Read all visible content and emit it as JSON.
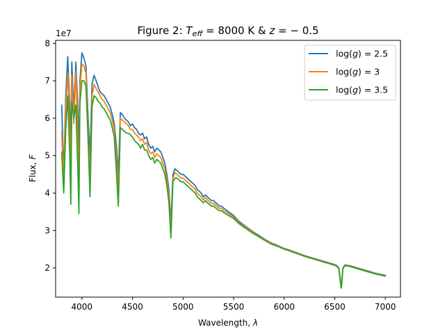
{
  "chart_data": {
    "type": "line",
    "title": "Figure 2: T_eff = 8000 K & z = −0.5",
    "title_parts": {
      "prefix": "Figure 2: ",
      "T": "T",
      "eff": "eff",
      "mid": " = 8000 K & ",
      "z": "z",
      "suffix": " = − 0.5"
    },
    "xlabel": "Wavelength, λ",
    "xlabel_parts": {
      "text": "Wavelength, ",
      "sym": "λ"
    },
    "ylabel": "Flux, F",
    "ylabel_parts": {
      "text": "Flux, ",
      "sym": "F"
    },
    "xlim": [
      3740,
      7150
    ],
    "ylim": [
      12200000,
      80800000
    ],
    "y_scale_label": "1e7",
    "x_ticks": [
      4000,
      4500,
      5000,
      5500,
      6000,
      6500,
      7000
    ],
    "x_tick_labels": [
      "4000",
      "4500",
      "5000",
      "5500",
      "6000",
      "6500",
      "7000"
    ],
    "y_ticks": [
      20000000,
      30000000,
      40000000,
      50000000,
      60000000,
      70000000,
      80000000
    ],
    "y_tick_labels": [
      "2",
      "3",
      "4",
      "5",
      "6",
      "7",
      "8"
    ],
    "grid": false,
    "legend_position": "top-right",
    "x": [
      3800,
      3820,
      3840,
      3860,
      3880,
      3890,
      3900,
      3920,
      3940,
      3960,
      3970,
      3980,
      4000,
      4020,
      4040,
      4060,
      4080,
      4100,
      4120,
      4140,
      4160,
      4180,
      4200,
      4220,
      4240,
      4260,
      4280,
      4300,
      4320,
      4340,
      4360,
      4380,
      4400,
      4420,
      4440,
      4460,
      4480,
      4500,
      4520,
      4540,
      4560,
      4580,
      4600,
      4620,
      4640,
      4660,
      4680,
      4700,
      4720,
      4740,
      4760,
      4780,
      4800,
      4820,
      4840,
      4860,
      4880,
      4900,
      4920,
      4940,
      4960,
      4980,
      5000,
      5020,
      5040,
      5060,
      5080,
      5100,
      5120,
      5140,
      5160,
      5180,
      5200,
      5220,
      5240,
      5260,
      5280,
      5300,
      5320,
      5340,
      5360,
      5380,
      5400,
      5450,
      5500,
      5550,
      5600,
      5650,
      5700,
      5750,
      5800,
      5850,
      5880,
      5900,
      5950,
      6000,
      6050,
      6100,
      6150,
      6200,
      6250,
      6300,
      6350,
      6400,
      6450,
      6500,
      6520,
      6540,
      6550,
      6560,
      6565,
      6570,
      6580,
      6600,
      6650,
      6700,
      6750,
      6800,
      6850,
      6900,
      6950,
      7000
    ],
    "series": [
      {
        "name": "log(g) = 2.5",
        "name_parts": {
          "func": "log(",
          "g": "g",
          "rest": ") = 2.5"
        },
        "color": "#1f77b4",
        "values": [
          63.5,
          45.0,
          66.0,
          76.5,
          62.0,
          55.0,
          75.0,
          62.0,
          75.0,
          62.0,
          48.0,
          70.0,
          77.5,
          76.0,
          74.0,
          61.0,
          50.0,
          69.0,
          71.5,
          70.0,
          68.5,
          67.0,
          66.5,
          66.0,
          65.0,
          64.0,
          63.0,
          61.0,
          58.5,
          53.0,
          45.0,
          61.5,
          61.0,
          60.0,
          59.5,
          59.0,
          58.0,
          58.5,
          57.5,
          57.0,
          56.0,
          55.5,
          56.0,
          54.5,
          55.0,
          53.0,
          52.0,
          52.5,
          51.0,
          52.0,
          51.5,
          51.0,
          49.5,
          48.0,
          45.0,
          41.0,
          32.0,
          45.0,
          46.5,
          46.0,
          45.5,
          45.0,
          45.0,
          44.5,
          44.0,
          43.5,
          43.0,
          42.5,
          42.0,
          41.0,
          40.5,
          40.0,
          39.0,
          39.5,
          39.0,
          38.5,
          38.0,
          38.0,
          37.5,
          37.0,
          36.5,
          36.5,
          36.0,
          35.0,
          34.0,
          32.5,
          31.5,
          30.5,
          29.5,
          28.7,
          27.8,
          27.0,
          26.6,
          26.4,
          25.8,
          25.2,
          24.8,
          24.3,
          23.8,
          23.3,
          22.9,
          22.5,
          22.1,
          21.7,
          21.3,
          20.9,
          20.6,
          20.0,
          18.0,
          16.0,
          15.0,
          16.5,
          20.0,
          20.8,
          20.6,
          20.2,
          19.8,
          19.4,
          19.0,
          18.6,
          18.3,
          18.0
        ]
      },
      {
        "name": "log(g) = 3",
        "name_parts": {
          "func": "log(",
          "g": "g",
          "rest": ") = 3"
        },
        "color": "#ff7f0e",
        "values": [
          56.5,
          43.5,
          63.0,
          72.0,
          56.5,
          46.0,
          71.5,
          58.5,
          72.5,
          55.0,
          40.0,
          68.0,
          74.5,
          74.0,
          72.0,
          58.0,
          44.0,
          66.0,
          69.0,
          68.0,
          67.0,
          66.0,
          65.0,
          64.5,
          63.5,
          62.5,
          61.5,
          59.5,
          57.0,
          50.0,
          41.0,
          60.0,
          59.5,
          59.0,
          58.5,
          58.0,
          57.0,
          57.0,
          56.0,
          55.5,
          55.0,
          54.0,
          54.5,
          53.0,
          53.5,
          51.5,
          50.5,
          51.0,
          49.5,
          50.5,
          50.0,
          49.5,
          48.0,
          46.5,
          43.5,
          39.5,
          30.0,
          44.0,
          45.5,
          45.0,
          44.5,
          44.0,
          44.0,
          43.5,
          43.0,
          42.5,
          42.0,
          41.5,
          41.0,
          40.0,
          39.5,
          39.0,
          38.2,
          38.8,
          38.2,
          37.7,
          37.2,
          37.3,
          36.8,
          36.3,
          35.9,
          35.9,
          35.4,
          34.5,
          33.6,
          32.2,
          31.2,
          30.3,
          29.3,
          28.5,
          27.7,
          26.9,
          26.5,
          26.3,
          25.7,
          25.1,
          24.7,
          24.2,
          23.7,
          23.2,
          22.8,
          22.4,
          22.0,
          21.6,
          21.2,
          20.8,
          20.5,
          19.9,
          17.8,
          15.6,
          14.8,
          16.2,
          19.9,
          20.7,
          20.5,
          20.1,
          19.7,
          19.3,
          18.9,
          18.5,
          18.2,
          17.9
        ]
      },
      {
        "name": "log(g) = 3.5",
        "name_parts": {
          "func": "log(",
          "g": "g",
          "rest": ") = 3.5"
        },
        "color": "#2ca02c",
        "values": [
          51.0,
          40.0,
          57.0,
          66.0,
          50.0,
          37.0,
          64.5,
          60.0,
          63.5,
          46.0,
          34.5,
          64.0,
          70.0,
          70.0,
          68.5,
          55.0,
          39.0,
          63.0,
          66.0,
          65.5,
          64.5,
          64.0,
          63.0,
          62.5,
          61.5,
          60.5,
          59.5,
          57.5,
          55.0,
          46.0,
          36.5,
          57.5,
          57.0,
          56.5,
          56.0,
          56.0,
          55.5,
          55.0,
          54.0,
          53.5,
          53.0,
          52.0,
          53.0,
          51.5,
          51.5,
          50.0,
          49.0,
          49.5,
          48.0,
          49.0,
          48.5,
          48.0,
          46.5,
          45.0,
          42.0,
          37.5,
          28.0,
          43.0,
          44.0,
          44.0,
          43.5,
          43.0,
          43.0,
          42.5,
          42.0,
          41.5,
          41.0,
          40.5,
          40.0,
          39.0,
          38.5,
          38.0,
          37.4,
          38.0,
          37.4,
          37.0,
          36.5,
          36.6,
          36.1,
          35.6,
          35.3,
          35.3,
          34.8,
          34.0,
          33.2,
          31.9,
          30.9,
          30.0,
          29.1,
          28.3,
          27.5,
          26.7,
          26.3,
          26.1,
          25.6,
          25.0,
          24.6,
          24.1,
          23.6,
          23.1,
          22.7,
          22.3,
          21.9,
          21.5,
          21.1,
          20.7,
          20.4,
          19.8,
          17.6,
          15.3,
          14.6,
          16.0,
          19.8,
          20.6,
          20.4,
          20.0,
          19.6,
          19.2,
          18.8,
          18.4,
          18.1,
          17.8
        ]
      }
    ]
  }
}
